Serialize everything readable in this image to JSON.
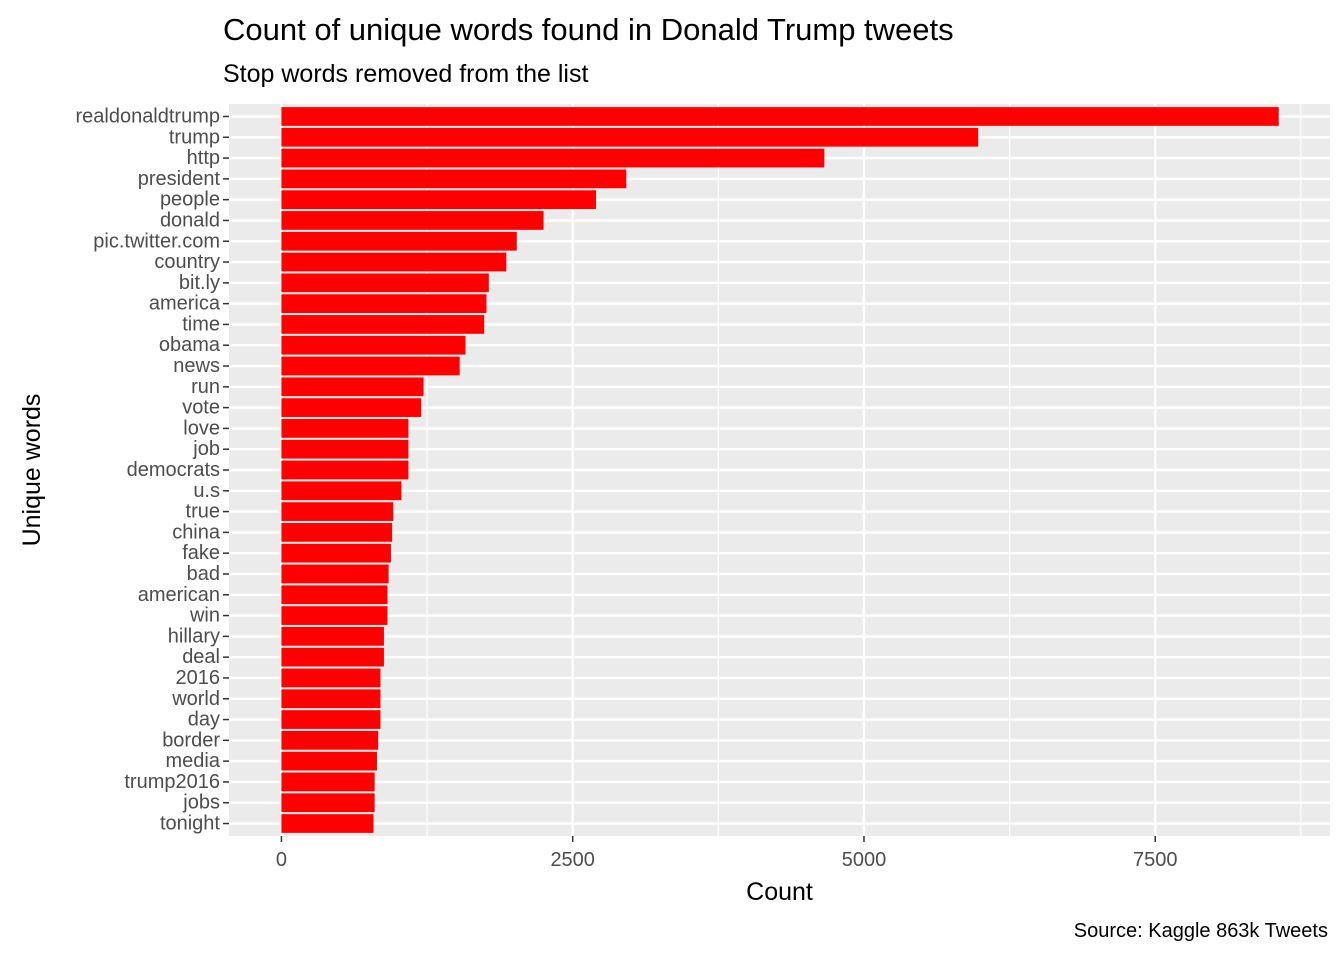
{
  "chart_data": {
    "type": "bar",
    "orientation": "horizontal",
    "title": "Count of unique words found in Donald Trump tweets",
    "subtitle": "Stop words removed from the list",
    "caption": "Source: Kaggle 863k Tweets",
    "xlabel": "Count",
    "ylabel": "Unique words",
    "xlim": [
      -450,
      9000
    ],
    "x_ticks": [
      0,
      2500,
      5000,
      7500
    ],
    "x_tick_labels": [
      "0",
      "2500",
      "5000",
      "7500"
    ],
    "grid": true,
    "bar_color": "#ff0000",
    "panel_color": "#ebebeb",
    "categories": [
      "realdonaldtrump",
      "trump",
      "http",
      "president",
      "people",
      "donald",
      "pic.twitter.com",
      "country",
      "bit.ly",
      "america",
      "time",
      "obama",
      "news",
      "run",
      "vote",
      "love",
      "job",
      "democrats",
      "u.s",
      "true",
      "china",
      "fake",
      "bad",
      "american",
      "win",
      "hillary",
      "deal",
      "2016",
      "world",
      "day",
      "border",
      "media",
      "trump2016",
      "jobs",
      "tonight"
    ],
    "values": [
      8560,
      5980,
      4660,
      2960,
      2700,
      2250,
      2020,
      1930,
      1780,
      1760,
      1740,
      1580,
      1530,
      1220,
      1200,
      1090,
      1090,
      1090,
      1030,
      960,
      950,
      940,
      920,
      910,
      910,
      880,
      880,
      850,
      850,
      850,
      830,
      820,
      800,
      800,
      790
    ]
  }
}
